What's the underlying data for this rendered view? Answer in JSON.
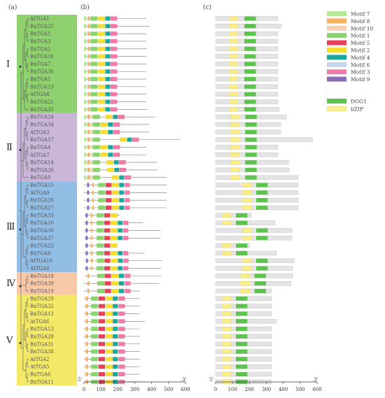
{
  "panel_labels": [
    "(a)",
    "(b)",
    "(c)"
  ],
  "clades": [
    {
      "label": "Ⅰ",
      "color": "#8fd16e",
      "start": 0,
      "end": 12
    },
    {
      "label": "Ⅱ",
      "color": "#c9b6d8",
      "start": 13,
      "end": 21
    },
    {
      "label": "Ⅲ",
      "color": "#92bde5",
      "start": 22,
      "end": 33
    },
    {
      "label": "Ⅳ",
      "color": "#f8c9a9",
      "start": 34,
      "end": 36
    },
    {
      "label": "Ⅴ",
      "color": "#f3e868",
      "start": 37,
      "end": 48
    }
  ],
  "genes": [
    "AtTGA1",
    "BnTGA25",
    "BnTGA1",
    "BnTGA3",
    "BnTGA2",
    "BnTGA16",
    "BnTGA7",
    "BnTGA36",
    "BnTGA5",
    "BnTGA23",
    "AtTGA4",
    "BnTGA21",
    "BnTGA35",
    "BnTGA24",
    "BnTGA34",
    "AtTGA3",
    "BnTGA17",
    "BnTGA4",
    "AtTGA7",
    "BnTGA14",
    "BnTGA26",
    "BnTGA9",
    "BnTGA15",
    "AtTGA9",
    "BnTGA20",
    "BnTGA27",
    "BnTGA33",
    "BnTGA10",
    "BnTGA30",
    "BnTGA37",
    "BnTGA22",
    "BnTGA8",
    "AtTGA10",
    "AtTGA8",
    "BnTGA18",
    "BnTGA39",
    "BnTGA19",
    "BnTGA29",
    "BnTGA32",
    "BnTGA12",
    "AtTGA6",
    "BnTGA13",
    "BnTGA28",
    "BnTGA31",
    "BnTGA38",
    "AtTGA2",
    "AtTGA5",
    "BnTGA6",
    "BnTGA11"
  ],
  "gene_lengths": [
    368,
    390,
    368,
    368,
    368,
    368,
    368,
    368,
    368,
    368,
    368,
    368,
    376,
    420,
    385,
    385,
    573,
    368,
    368,
    432,
    436,
    488,
    488,
    488,
    488,
    488,
    210,
    350,
    452,
    452,
    200,
    360,
    465,
    455,
    455,
    445,
    330,
    330,
    330,
    330,
    360,
    330,
    330,
    330,
    330,
    330,
    330,
    330,
    330
  ],
  "axis": {
    "ticks": [
      0,
      100,
      200,
      300,
      400,
      500,
      600
    ],
    "five_prime": "5'",
    "three_prime": "3'"
  },
  "motif_legend": [
    {
      "name": "Motif 7",
      "color": "#b4e89c"
    },
    {
      "name": "Motif 8",
      "color": "#f7b25e"
    },
    {
      "name": "Motif 10",
      "color": "#f8d0b0"
    },
    {
      "name": "Motif 1",
      "color": "#8ad46f"
    },
    {
      "name": "Motif 5",
      "color": "#e8425a"
    },
    {
      "name": "Motif 2",
      "color": "#f7dc32"
    },
    {
      "name": "Motif 4",
      "color": "#1aa89b"
    },
    {
      "name": "Motif 6",
      "color": "#c8d4ea"
    },
    {
      "name": "Motif 3",
      "color": "#f07aa8"
    },
    {
      "name": "Motif 9",
      "color": "#8a6db8"
    }
  ],
  "domain_legend": [
    {
      "name": "DOG1",
      "color": "#5cc44c"
    },
    {
      "name": "bZIP",
      "color": "#fbee8a"
    }
  ]
}
